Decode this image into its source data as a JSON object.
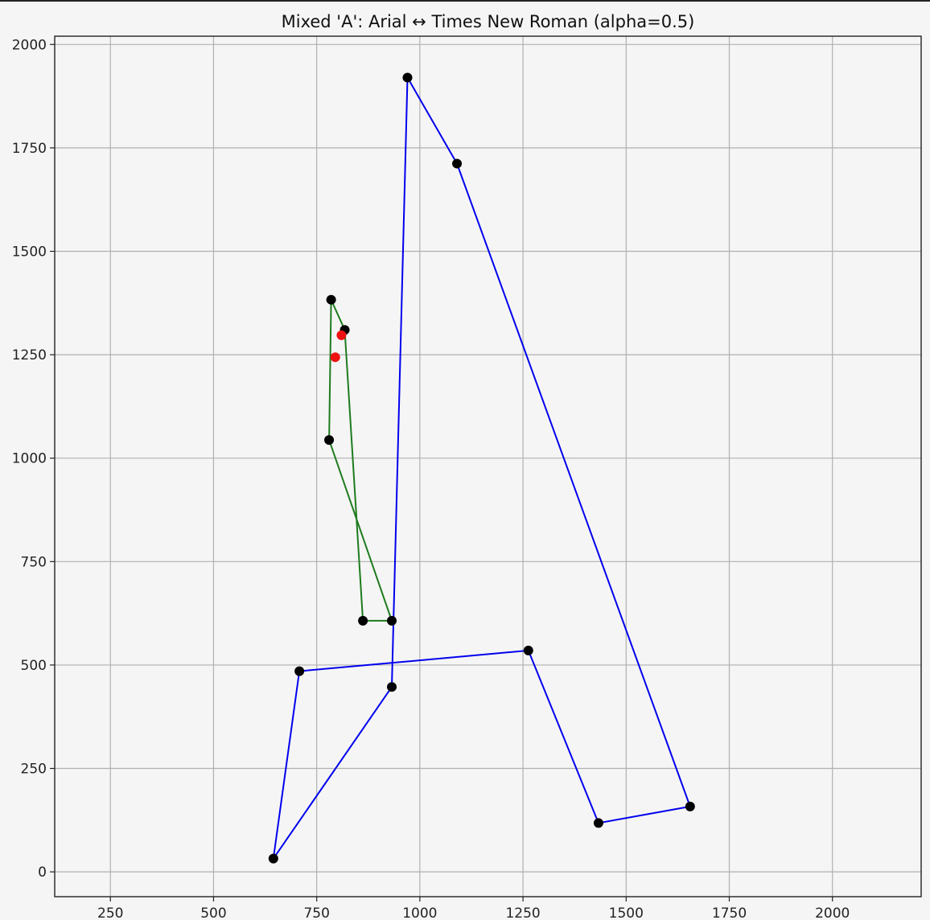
{
  "chart_data": {
    "type": "line",
    "title": "Mixed 'A': Arial ↔ Times New Roman (alpha=0.5)",
    "xlabel": "",
    "ylabel": "",
    "xlim": [
      115,
      2215
    ],
    "ylim": [
      -60,
      2020
    ],
    "xticks": [
      250,
      500,
      750,
      1000,
      1250,
      1500,
      1750,
      2000
    ],
    "yticks": [
      0,
      250,
      500,
      750,
      1000,
      1250,
      1500,
      1750,
      2000
    ],
    "grid": true,
    "legend": "none",
    "series": [
      {
        "color": "#0000ee",
        "closed": true,
        "marker_color": "#000000",
        "points": [
          [
            970,
            1920
          ],
          [
            1090,
            1712
          ],
          [
            1655,
            158
          ],
          [
            1433,
            118
          ],
          [
            1263,
            535
          ],
          [
            708,
            485
          ],
          [
            645,
            32
          ],
          [
            932,
            447
          ],
          [
            970,
            1920
          ]
        ]
      },
      {
        "color": "#1e7b1e",
        "closed": true,
        "marker_color": "#000000",
        "points": [
          [
            785,
            1383
          ],
          [
            818,
            1310
          ],
          [
            862,
            607
          ],
          [
            932,
            607
          ],
          [
            780,
            1044
          ],
          [
            785,
            1383
          ]
        ]
      }
    ],
    "extra_points": {
      "color": "#ee1111",
      "points": [
        [
          810,
          1297
        ],
        [
          795,
          1244
        ]
      ]
    }
  }
}
